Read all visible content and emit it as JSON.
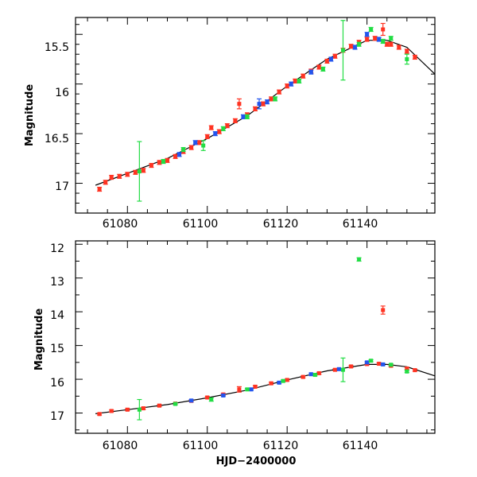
{
  "chart_data": [
    {
      "type": "scatter",
      "xlabel": "",
      "ylabel": "Magnitude",
      "xlim": [
        61067,
        61157
      ],
      "ylim": [
        17.3,
        15.33
      ],
      "y_inverted": true,
      "x_ticks": [
        61080,
        61100,
        61120,
        61140
      ],
      "y_ticks": [
        15.5,
        16,
        16.5,
        17
      ],
      "x_tick_labels": [
        "61080",
        "61100",
        "61120",
        "61140"
      ],
      "y_tick_labels": [
        "15.5",
        "16",
        "16.5",
        "17"
      ],
      "series": [
        {
          "name": "red",
          "color": "#ff3322",
          "x": [
            61073.0,
            61074.5,
            61076.0,
            61078.0,
            61080.0,
            61082.0,
            61084.0,
            61086.0,
            61088.0,
            61090.0,
            61092.0,
            61094.0,
            61096.0,
            61098.0,
            61100.0,
            61101.0,
            61103.0,
            61105.0,
            61107.0,
            61108.0,
            61110.0,
            61112.0,
            61114.0,
            61116.0,
            61118.0,
            61120.0,
            61122.0,
            61124.0,
            61126.0,
            61128.0,
            61130.0,
            61132.0,
            61134.0,
            61136.0,
            61138.0,
            61140.0,
            61142.0,
            61144.0,
            61145.0,
            61146.0,
            61148.0,
            61150.0,
            61152.0
          ],
          "y": [
            17.06,
            16.99,
            16.94,
            16.93,
            16.91,
            16.89,
            16.87,
            16.82,
            16.79,
            16.77,
            16.73,
            16.68,
            16.64,
            16.59,
            16.53,
            16.44,
            16.48,
            16.42,
            16.37,
            16.2,
            16.31,
            16.25,
            16.2,
            16.15,
            16.08,
            16.02,
            15.97,
            15.92,
            15.87,
            15.83,
            15.77,
            15.72,
            15.66,
            15.62,
            15.58,
            15.55,
            15.54,
            15.45,
            15.6,
            15.6,
            15.63,
            15.67,
            15.73
          ],
          "yerr": [
            0.02,
            0.02,
            0.02,
            0.02,
            0.02,
            0.02,
            0.02,
            0.02,
            0.02,
            0.02,
            0.02,
            0.02,
            0.02,
            0.02,
            0.02,
            0.02,
            0.02,
            0.02,
            0.02,
            0.05,
            0.02,
            0.02,
            0.02,
            0.02,
            0.02,
            0.02,
            0.02,
            0.02,
            0.02,
            0.02,
            0.02,
            0.02,
            0.02,
            0.02,
            0.02,
            0.02,
            0.02,
            0.06,
            0.02,
            0.02,
            0.02,
            0.02,
            0.02
          ]
        },
        {
          "name": "blue",
          "color": "#2255ee",
          "x": [
            61093.0,
            61097.0,
            61102.0,
            61109.0,
            61113.0,
            61115.0,
            61121.0,
            61126.0,
            61131.0,
            61137.0,
            61140.0,
            61143.0
          ],
          "y": [
            16.71,
            16.59,
            16.5,
            16.33,
            16.2,
            16.18,
            16.0,
            15.88,
            15.75,
            15.63,
            15.5,
            15.55
          ],
          "yerr": [
            0.02,
            0.02,
            0.02,
            0.02,
            0.05,
            0.02,
            0.02,
            0.02,
            0.02,
            0.02,
            0.02,
            0.02
          ]
        },
        {
          "name": "green",
          "color": "#22dd44",
          "x": [
            61083.0,
            61089.0,
            61094.0,
            61099.0,
            61104.0,
            61110.0,
            61117.0,
            61123.0,
            61129.0,
            61134.0,
            61138.0,
            61141.0,
            61144.0,
            61146.0,
            61150.0
          ],
          "y": [
            16.88,
            16.78,
            16.66,
            16.62,
            16.45,
            16.33,
            16.15,
            15.97,
            15.85,
            15.66,
            15.6,
            15.45,
            15.57,
            15.54,
            15.75
          ],
          "yerr": [
            0.3,
            0.02,
            0.02,
            0.05,
            0.02,
            0.02,
            0.02,
            0.02,
            0.02,
            0.3,
            0.02,
            0.02,
            0.02,
            0.02,
            0.05
          ]
        }
      ],
      "model_curve": {
        "x": [
          61072,
          61080,
          61090,
          61100,
          61110,
          61120,
          61130,
          61140,
          61145,
          61150,
          61157
        ],
        "y": [
          17.02,
          16.9,
          16.75,
          16.55,
          16.32,
          16.02,
          15.75,
          15.56,
          15.56,
          15.63,
          15.9
        ]
      }
    },
    {
      "type": "scatter",
      "xlabel": "HJD−2400000",
      "ylabel": "Magnitude",
      "xlim": [
        61067,
        61157
      ],
      "ylim": [
        17.6,
        11.9
      ],
      "y_inverted": true,
      "x_ticks": [
        61080,
        61100,
        61120,
        61140
      ],
      "y_ticks": [
        12,
        13,
        14,
        15,
        16,
        17
      ],
      "x_tick_labels": [
        "61080",
        "61100",
        "61120",
        "61140"
      ],
      "y_tick_labels": [
        "12",
        "13",
        "14",
        "15",
        "16",
        "17"
      ],
      "series": [
        {
          "name": "red",
          "color": "#ff3322",
          "x": [
            61073.0,
            61076.0,
            61080.0,
            61084.0,
            61088.0,
            61092.0,
            61096.0,
            61100.0,
            61104.0,
            61108.0,
            61112.0,
            61116.0,
            61120.0,
            61124.0,
            61128.0,
            61132.0,
            61136.0,
            61140.0,
            61143.0,
            61144.0,
            61146.0,
            61150.0,
            61152.0
          ],
          "y": [
            17.03,
            16.94,
            16.9,
            16.86,
            16.78,
            16.72,
            16.64,
            16.54,
            16.45,
            16.3,
            16.22,
            16.12,
            16.02,
            15.93,
            15.82,
            15.72,
            15.62,
            15.55,
            15.54,
            13.95,
            15.6,
            15.68,
            15.73
          ],
          "yerr": [
            0.03,
            0.03,
            0.03,
            0.03,
            0.03,
            0.03,
            0.03,
            0.03,
            0.03,
            0.08,
            0.03,
            0.03,
            0.03,
            0.03,
            0.03,
            0.03,
            0.03,
            0.03,
            0.03,
            0.12,
            0.03,
            0.03,
            0.03
          ]
        },
        {
          "name": "blue",
          "color": "#2255ee",
          "x": [
            61096.0,
            61104.0,
            61111.0,
            61118.0,
            61126.0,
            61133.0,
            61140.0,
            61144.0
          ],
          "y": [
            16.63,
            16.48,
            16.3,
            16.1,
            15.85,
            15.7,
            15.5,
            15.56
          ],
          "yerr": [
            0.03,
            0.03,
            0.03,
            0.03,
            0.03,
            0.03,
            0.03,
            0.03
          ]
        },
        {
          "name": "green",
          "color": "#22dd44",
          "x": [
            61083.0,
            61092.0,
            61101.0,
            61110.0,
            61119.0,
            61127.0,
            61134.0,
            61138.0,
            61141.0,
            61146.0,
            61150.0
          ],
          "y": [
            16.9,
            16.73,
            16.6,
            16.3,
            16.05,
            15.87,
            15.72,
            12.45,
            15.45,
            15.57,
            15.77
          ],
          "yerr": [
            0.3,
            0.03,
            0.05,
            0.03,
            0.03,
            0.03,
            0.35,
            0.05,
            0.03,
            0.03,
            0.03
          ]
        }
      ],
      "model_curve": {
        "x": [
          61072,
          61080,
          61090,
          61100,
          61110,
          61120,
          61130,
          61140,
          61145,
          61150,
          61157
        ],
        "y": [
          17.02,
          16.9,
          16.75,
          16.55,
          16.32,
          16.02,
          15.75,
          15.56,
          15.56,
          15.63,
          15.9
        ]
      }
    }
  ]
}
